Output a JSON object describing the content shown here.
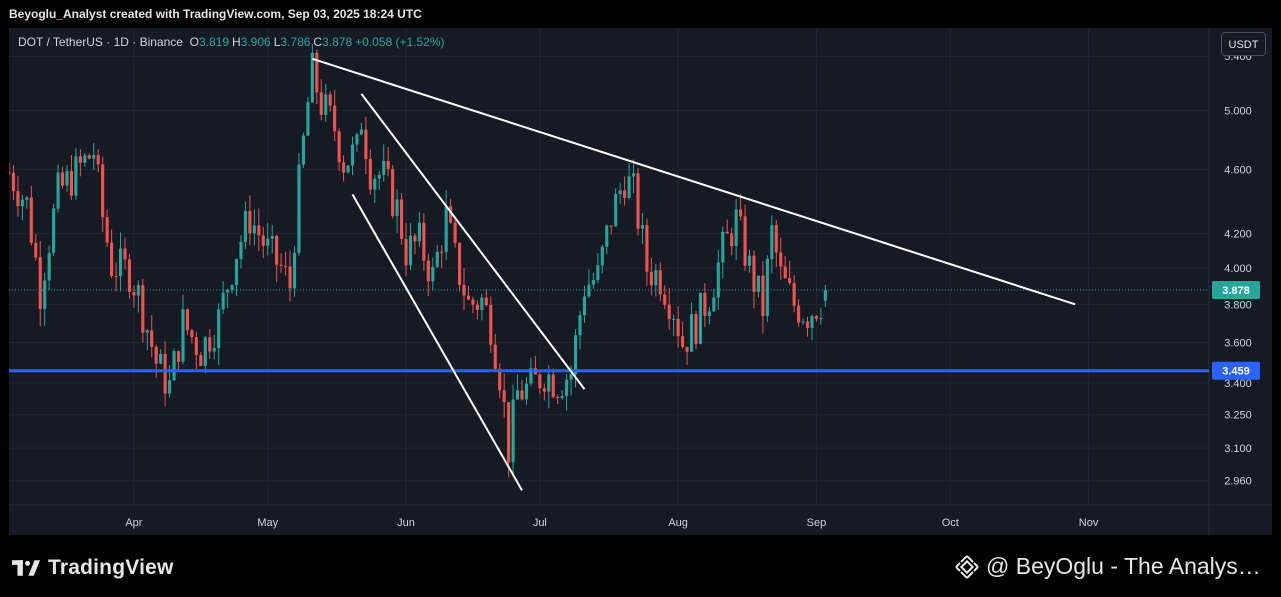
{
  "header": {
    "credit": "Beyoglu_Analyst created with TradingView.com, Sep 03, 2025 18:24 UTC"
  },
  "legend": {
    "symbol": "DOT / TetherUS · 1D · Binance",
    "open_label": "O",
    "open": "3.819",
    "high_label": "H",
    "high": "3.906",
    "low_label": "L",
    "low": "3.786",
    "close_label": "C",
    "close": "3.878",
    "change": "+0.058 (+1.52%)"
  },
  "currency_button": "USDT",
  "footer": {
    "brand": "TradingView",
    "author": "@ BeyOglu - The Analys…"
  },
  "colors": {
    "up": "#26a69a",
    "down": "#ef5350",
    "support": "#2962ff",
    "trendline": "#ffffff",
    "background": "#161a25"
  },
  "chart_data": {
    "type": "candlestick",
    "symbol": "DOT/USDT",
    "interval": "1D",
    "y_scale": "log",
    "ylim": [
      2.86,
      5.62
    ],
    "x_range": [
      "2025-03-04",
      "2025-11-28"
    ],
    "y_ticks": [
      "5.400",
      "5.000",
      "4.600",
      "4.200",
      "4.000",
      "3.800",
      "3.600",
      "3.400",
      "3.250",
      "3.100",
      "2.960"
    ],
    "x_ticks": [
      {
        "label": "Apr",
        "date": "2025-04-01"
      },
      {
        "label": "May",
        "date": "2025-05-01"
      },
      {
        "label": "Jun",
        "date": "2025-06-01"
      },
      {
        "label": "Jul",
        "date": "2025-07-01"
      },
      {
        "label": "Aug",
        "date": "2025-08-01"
      },
      {
        "label": "Sep",
        "date": "2025-09-01"
      },
      {
        "label": "Oct",
        "date": "2025-10-01"
      },
      {
        "label": "Nov",
        "date": "2025-11-01"
      }
    ],
    "last_price": "3.878",
    "support_level": "3.459",
    "trendlines": [
      {
        "from": {
          "date": "2025-05-11",
          "price": 5.38
        },
        "to": {
          "date": "2025-10-29",
          "price": 3.8
        }
      },
      {
        "from": {
          "date": "2025-05-22",
          "price": 5.12
        },
        "to": {
          "date": "2025-07-11",
          "price": 3.37
        }
      },
      {
        "from": {
          "date": "2025-05-20",
          "price": 4.44
        },
        "to": {
          "date": "2025-06-27",
          "price": 2.92
        }
      }
    ],
    "anchors": [
      [
        "2025-03-04",
        4.58
      ],
      [
        "2025-03-08",
        4.38
      ],
      [
        "2025-03-11",
        3.88
      ],
      [
        "2025-03-15",
        4.45
      ],
      [
        "2025-03-19",
        4.58
      ],
      [
        "2025-03-23",
        4.72
      ],
      [
        "2025-03-25",
        4.3
      ],
      [
        "2025-03-27",
        4.02
      ],
      [
        "2025-03-31",
        3.98
      ],
      [
        "2025-04-02",
        3.85
      ],
      [
        "2025-04-06",
        3.5
      ],
      [
        "2025-04-09",
        3.38
      ],
      [
        "2025-04-12",
        3.7
      ],
      [
        "2025-04-16",
        3.56
      ],
      [
        "2025-04-20",
        3.72
      ],
      [
        "2025-04-24",
        4.1
      ],
      [
        "2025-04-27",
        4.3
      ],
      [
        "2025-05-01",
        4.1
      ],
      [
        "2025-05-04",
        4.0
      ],
      [
        "2025-05-06",
        3.9
      ],
      [
        "2025-05-08",
        4.5
      ],
      [
        "2025-05-10",
        5.05
      ],
      [
        "2025-05-11",
        5.28
      ],
      [
        "2025-05-13",
        5.05
      ],
      [
        "2025-05-16",
        4.88
      ],
      [
        "2025-05-18",
        4.65
      ],
      [
        "2025-05-21",
        4.72
      ],
      [
        "2025-05-22",
        4.95
      ],
      [
        "2025-05-24",
        4.6
      ],
      [
        "2025-05-27",
        4.55
      ],
      [
        "2025-05-30",
        4.35
      ],
      [
        "2025-06-01",
        4.1
      ],
      [
        "2025-06-04",
        4.15
      ],
      [
        "2025-06-07",
        3.95
      ],
      [
        "2025-06-10",
        4.3
      ],
      [
        "2025-06-12",
        4.05
      ],
      [
        "2025-06-15",
        3.8
      ],
      [
        "2025-06-18",
        3.82
      ],
      [
        "2025-06-20",
        3.7
      ],
      [
        "2025-06-22",
        3.45
      ],
      [
        "2025-06-24",
        3.1
      ],
      [
        "2025-06-26",
        3.35
      ],
      [
        "2025-06-29",
        3.38
      ],
      [
        "2025-07-02",
        3.45
      ],
      [
        "2025-07-05",
        3.4
      ],
      [
        "2025-07-08",
        3.45
      ],
      [
        "2025-07-11",
        3.9
      ],
      [
        "2025-07-14",
        3.95
      ],
      [
        "2025-07-17",
        4.3
      ],
      [
        "2025-07-20",
        4.55
      ],
      [
        "2025-07-22",
        4.45
      ],
      [
        "2025-07-25",
        4.0
      ],
      [
        "2025-07-28",
        3.95
      ],
      [
        "2025-07-31",
        3.78
      ],
      [
        "2025-08-02",
        3.6
      ],
      [
        "2025-08-05",
        3.7
      ],
      [
        "2025-08-08",
        3.85
      ],
      [
        "2025-08-11",
        4.1
      ],
      [
        "2025-08-14",
        4.28
      ],
      [
        "2025-08-17",
        4.0
      ],
      [
        "2025-08-20",
        3.78
      ],
      [
        "2025-08-22",
        4.2
      ],
      [
        "2025-08-24",
        3.95
      ],
      [
        "2025-08-27",
        3.8
      ],
      [
        "2025-08-30",
        3.75
      ],
      [
        "2025-09-02",
        3.82
      ],
      [
        "2025-09-03",
        3.878
      ]
    ]
  }
}
